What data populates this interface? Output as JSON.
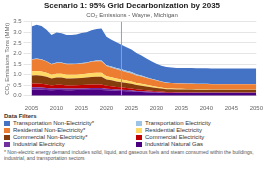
{
  "chart_data": {
    "type": "area",
    "title": "Scenario 1: 95% Grid Decarbonization by 2035",
    "subtitle": "CO₂ Emissions - Wayne, Michigan",
    "ylabel": "CO₂ Emissions Tons (MMt)",
    "x": [
      2005,
      2006,
      2007,
      2008,
      2009,
      2010,
      2011,
      2012,
      2013,
      2014,
      2015,
      2016,
      2017,
      2018,
      2019,
      2020,
      2021,
      2022,
      2023,
      2024,
      2025,
      2026,
      2027,
      2028,
      2029,
      2030,
      2031,
      2032,
      2033,
      2034,
      2035,
      2036,
      2037,
      2038,
      2039,
      2040,
      2041,
      2042,
      2043,
      2044,
      2045,
      2046,
      2047,
      2048,
      2049,
      2050
    ],
    "series": [
      {
        "name": "Industrial Natural Gas",
        "color": "#4b0082",
        "values": [
          0.3,
          0.3,
          0.29,
          0.28,
          0.26,
          0.27,
          0.27,
          0.26,
          0.26,
          0.27,
          0.27,
          0.27,
          0.28,
          0.28,
          0.28,
          0.26,
          0.25,
          0.24,
          0.23,
          0.22,
          0.21,
          0.19,
          0.18,
          0.17,
          0.16,
          0.15,
          0.14,
          0.13,
          0.13,
          0.13,
          0.13,
          0.13,
          0.13,
          0.13,
          0.13,
          0.13,
          0.13,
          0.13,
          0.13,
          0.13,
          0.13,
          0.13,
          0.13,
          0.13,
          0.13,
          0.13
        ]
      },
      {
        "name": "Industrial Electricity",
        "color": "#7030a0",
        "values": [
          0.1,
          0.1,
          0.1,
          0.09,
          0.08,
          0.09,
          0.09,
          0.08,
          0.08,
          0.08,
          0.08,
          0.09,
          0.09,
          0.09,
          0.09,
          0.07,
          0.07,
          0.06,
          0.06,
          0.05,
          0.05,
          0.04,
          0.04,
          0.03,
          0.03,
          0.03,
          0.02,
          0.02,
          0.02,
          0.02,
          0.02,
          0.02,
          0.02,
          0.02,
          0.02,
          0.02,
          0.02,
          0.02,
          0.02,
          0.02,
          0.02,
          0.02,
          0.02,
          0.02,
          0.02,
          0.02
        ]
      },
      {
        "name": "Commercial Electricity",
        "color": "#c00000",
        "values": [
          0.18,
          0.18,
          0.18,
          0.17,
          0.15,
          0.16,
          0.16,
          0.15,
          0.15,
          0.15,
          0.16,
          0.16,
          0.17,
          0.17,
          0.17,
          0.14,
          0.13,
          0.12,
          0.11,
          0.1,
          0.09,
          0.08,
          0.07,
          0.06,
          0.05,
          0.04,
          0.04,
          0.03,
          0.03,
          0.02,
          0.02,
          0.02,
          0.02,
          0.01,
          0.01,
          0.01,
          0.01,
          0.01,
          0.01,
          0.01,
          0.01,
          0.01,
          0.01,
          0.01,
          0.01,
          0.01
        ]
      },
      {
        "name": "Commercial Non-Electricity*",
        "color": "#843c0c",
        "values": [
          0.38,
          0.39,
          0.38,
          0.36,
          0.33,
          0.34,
          0.34,
          0.33,
          0.33,
          0.33,
          0.33,
          0.34,
          0.35,
          0.36,
          0.36,
          0.3,
          0.28,
          0.26,
          0.24,
          0.23,
          0.22,
          0.2,
          0.19,
          0.18,
          0.17,
          0.15,
          0.14,
          0.13,
          0.13,
          0.13,
          0.13,
          0.13,
          0.13,
          0.13,
          0.13,
          0.13,
          0.13,
          0.13,
          0.13,
          0.13,
          0.13,
          0.13,
          0.13,
          0.13,
          0.13,
          0.13
        ]
      },
      {
        "name": "Residential Electricity",
        "color": "#ffd966",
        "values": [
          0.2,
          0.2,
          0.2,
          0.19,
          0.17,
          0.18,
          0.18,
          0.17,
          0.17,
          0.17,
          0.18,
          0.18,
          0.19,
          0.19,
          0.19,
          0.16,
          0.15,
          0.14,
          0.13,
          0.12,
          0.11,
          0.1,
          0.09,
          0.08,
          0.07,
          0.06,
          0.05,
          0.04,
          0.04,
          0.03,
          0.03,
          0.02,
          0.02,
          0.02,
          0.02,
          0.02,
          0.01,
          0.01,
          0.01,
          0.01,
          0.01,
          0.01,
          0.01,
          0.01,
          0.01,
          0.01
        ]
      },
      {
        "name": "Residential Non-Electricity*",
        "color": "#ed7d31",
        "values": [
          0.55,
          0.57,
          0.56,
          0.53,
          0.49,
          0.51,
          0.51,
          0.5,
          0.5,
          0.5,
          0.5,
          0.51,
          0.53,
          0.54,
          0.54,
          0.48,
          0.45,
          0.43,
          0.41,
          0.39,
          0.37,
          0.35,
          0.34,
          0.32,
          0.3,
          0.29,
          0.27,
          0.26,
          0.25,
          0.25,
          0.25,
          0.25,
          0.25,
          0.25,
          0.25,
          0.25,
          0.25,
          0.25,
          0.25,
          0.25,
          0.25,
          0.25,
          0.25,
          0.25,
          0.25,
          0.25
        ]
      },
      {
        "name": "Transportation Electricity",
        "color": "#9dc3e6",
        "values": [
          0.02,
          0.02,
          0.02,
          0.02,
          0.02,
          0.02,
          0.02,
          0.02,
          0.02,
          0.02,
          0.03,
          0.03,
          0.03,
          0.04,
          0.04,
          0.04,
          0.05,
          0.06,
          0.07,
          0.07,
          0.07,
          0.06,
          0.05,
          0.04,
          0.03,
          0.03,
          0.02,
          0.02,
          0.01,
          0.01,
          0.01,
          0.01,
          0.01,
          0.01,
          0.01,
          0.01,
          0.01,
          0.01,
          0.01,
          0.01,
          0.01,
          0.01,
          0.01,
          0.01,
          0.01,
          0.01
        ]
      },
      {
        "name": "Transportation Non-Electricity*",
        "color": "#4472c4",
        "values": [
          1.55,
          1.6,
          1.57,
          1.48,
          1.37,
          1.42,
          1.39,
          1.36,
          1.37,
          1.38,
          1.42,
          1.43,
          1.46,
          1.49,
          1.51,
          1.34,
          1.27,
          1.22,
          1.16,
          1.12,
          1.07,
          1.01,
          0.95,
          0.89,
          0.83,
          0.77,
          0.74,
          0.73,
          0.73,
          0.73,
          0.73,
          0.73,
          0.73,
          0.73,
          0.73,
          0.73,
          0.73,
          0.73,
          0.73,
          0.73,
          0.73,
          0.73,
          0.73,
          0.73,
          0.73,
          0.73
        ]
      }
    ],
    "stacked": true,
    "xlim": [
      2005,
      2050
    ],
    "xticks": [
      2005,
      2010,
      2015,
      2020,
      2025,
      2030,
      2035,
      2040,
      2045,
      2050
    ],
    "ylim": [
      0,
      3.5
    ],
    "yticks": [
      {
        "value": 0,
        "label": "0.0"
      },
      0.5,
      {
        "value": 1,
        "label": "1.0"
      },
      1.5,
      {
        "value": 2,
        "label": "2.0"
      },
      2.5,
      {
        "value": 3,
        "label": "3.0"
      },
      3.5
    ],
    "grid": "y",
    "vline": {
      "x": 2023,
      "color": "#6baed6"
    },
    "legend": "bottom",
    "legend_title": "Data Filters",
    "footnote": "* Non-electric energy demand includes solid, liquid, and gaseous fuels and steam consumed within the buildings, industrial, and transportation sectors"
  }
}
